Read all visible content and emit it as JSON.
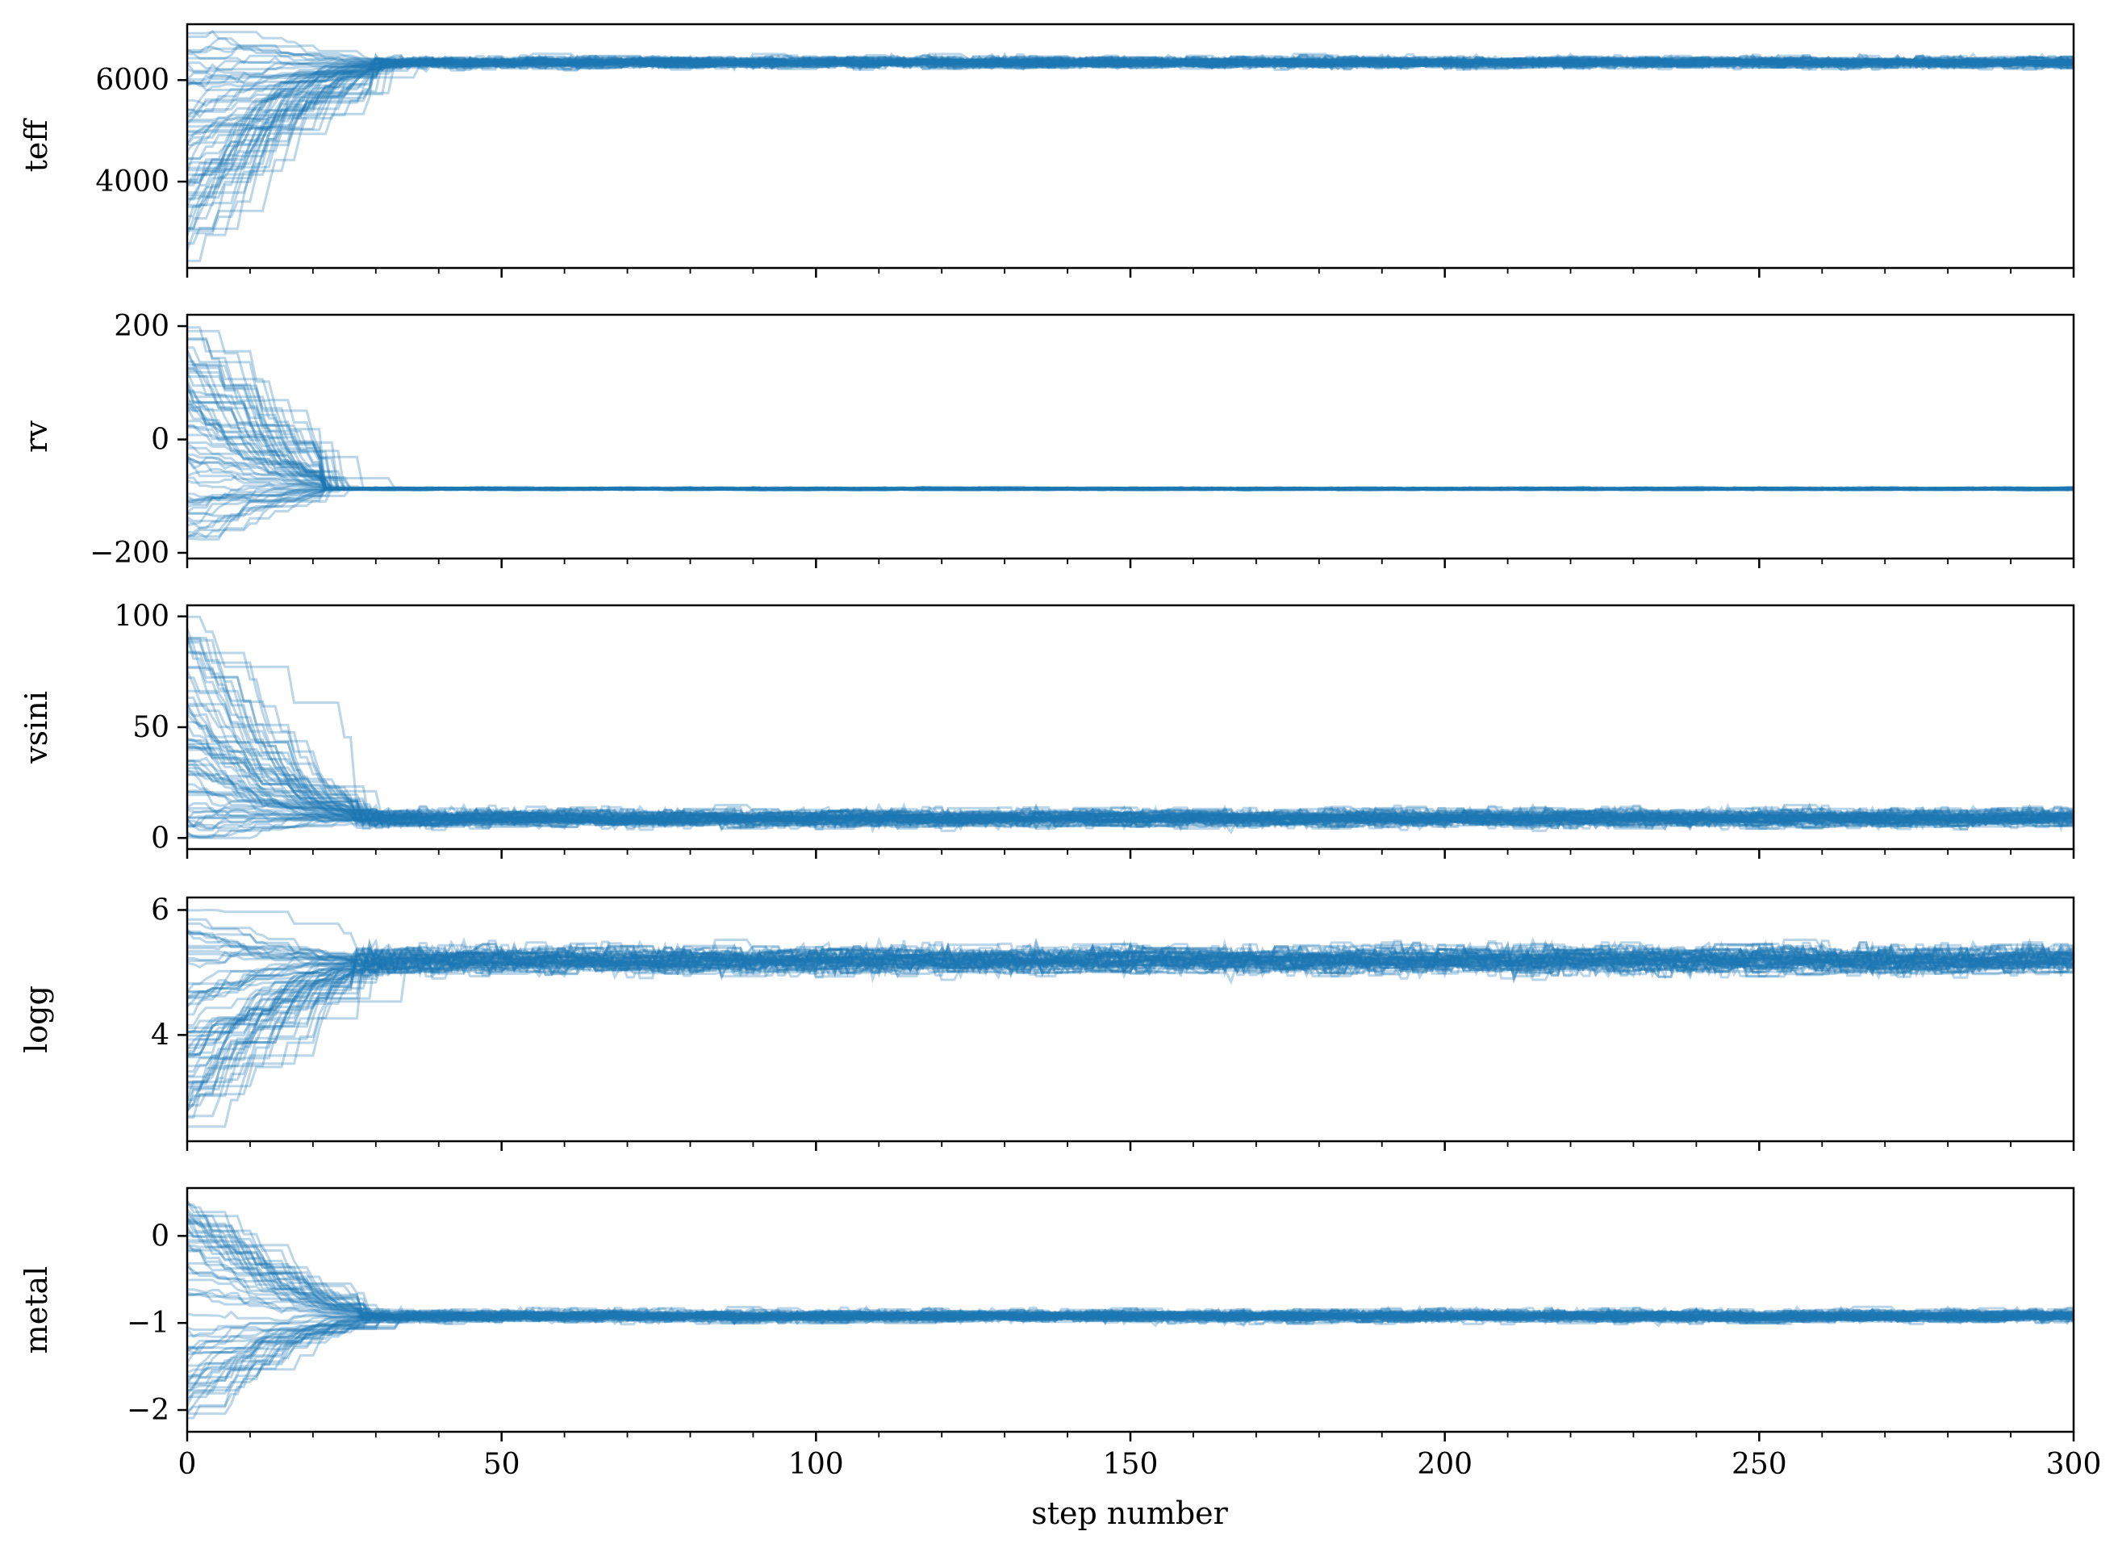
{
  "chart_data": {
    "type": "line",
    "subtype": "mcmc-trace",
    "xlabel": "step number",
    "xlim": [
      0,
      300
    ],
    "x_ticks": [
      0,
      50,
      100,
      150,
      200,
      250,
      300
    ],
    "x_tick_labels": [
      "0",
      "50",
      "100",
      "150",
      "200",
      "250",
      "300"
    ],
    "shared_x": true,
    "grid": false,
    "legend": "none",
    "series_color": "#1f77b4",
    "walker_count_estimate": 64,
    "panels": [
      {
        "ylabel": "teff",
        "ylim": [
          2300,
          7100
        ],
        "y_ticks": [
          4000,
          6000
        ],
        "y_tick_labels": [
          "4000",
          "6000"
        ],
        "init_range": [
          2400,
          7000
        ],
        "converged_value": 6350,
        "converged_spread": 110,
        "burn_in_steps": 30
      },
      {
        "ylabel": "rv",
        "ylim": [
          -210,
          220
        ],
        "y_ticks": [
          -200,
          0,
          200
        ],
        "y_tick_labels": [
          "−200",
          "0",
          "200"
        ],
        "init_range": [
          -190,
          200
        ],
        "converged_value": -87,
        "converged_spread": 2,
        "burn_in_steps": 22
      },
      {
        "ylabel": "vsini",
        "ylim": [
          -5,
          105
        ],
        "y_ticks": [
          0,
          50,
          100
        ],
        "y_tick_labels": [
          "0",
          "50",
          "100"
        ],
        "init_range": [
          0,
          100
        ],
        "converged_value": 9,
        "converged_spread": 4,
        "burn_in_steps": 27
      },
      {
        "ylabel": "logg",
        "ylim": [
          2.3,
          6.2
        ],
        "y_ticks": [
          4,
          6
        ],
        "y_tick_labels": [
          "4",
          "6"
        ],
        "init_range": [
          2.5,
          6.0
        ],
        "converged_value": 5.2,
        "converged_spread": 0.22,
        "burn_in_steps": 27
      },
      {
        "ylabel": "metal",
        "ylim": [
          -2.25,
          0.55
        ],
        "y_ticks": [
          -2,
          -1,
          0
        ],
        "y_tick_labels": [
          "−2",
          "−1",
          "0"
        ],
        "init_range": [
          -2.1,
          0.4
        ],
        "converged_value": -0.92,
        "converged_spread": 0.07,
        "burn_in_steps": 28
      }
    ]
  }
}
